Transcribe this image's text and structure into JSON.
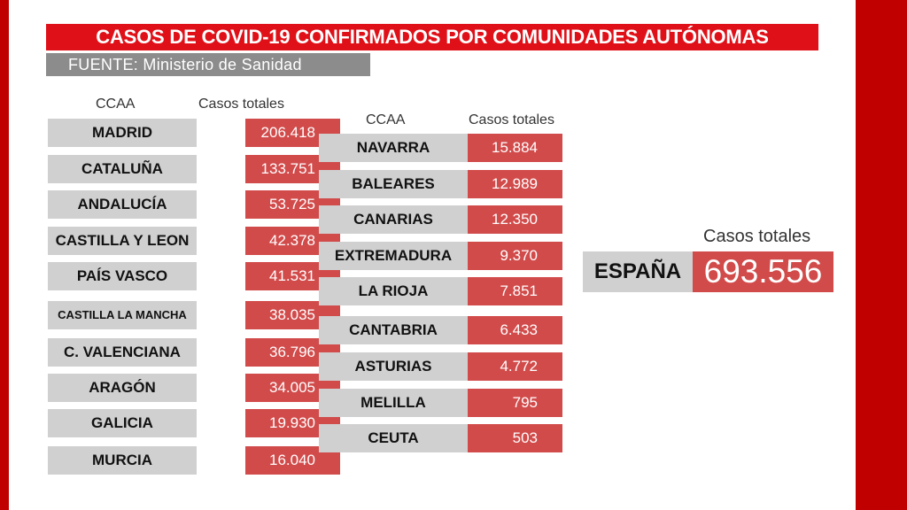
{
  "title": "CASOS DE COVID-19 CONFIRMADOS POR COMUNIDADES AUTÓNOMAS",
  "source": "FUENTE: Ministerio de Sanidad",
  "colors": {
    "accent_red": "#e01018",
    "value_red": "#d24b4b",
    "name_gray": "#d0d0d0",
    "source_gray": "#8c8c8c"
  },
  "left_table": {
    "header_name": "CCAA",
    "header_value": "Casos totales",
    "rows": [
      {
        "name": "MADRID",
        "value": "206.418"
      },
      {
        "name": "CATALUÑA",
        "value": "133.751"
      },
      {
        "name": "ANDALUCÍA",
        "value": "53.725"
      },
      {
        "name": "CASTILLA Y LEON",
        "value": "42.378"
      },
      {
        "name": "PAÍS VASCO",
        "value": "41.531"
      },
      {
        "name": "CASTILLA LA MANCHA",
        "value": "38.035"
      },
      {
        "name": "C. VALENCIANA",
        "value": "36.796"
      },
      {
        "name": "ARAGÓN",
        "value": "34.005"
      },
      {
        "name": "GALICIA",
        "value": "19.930"
      },
      {
        "name": "MURCIA",
        "value": "16.040"
      }
    ]
  },
  "right_table": {
    "header_name": "CCAA",
    "header_value": "Casos totales",
    "rows": [
      {
        "name": "NAVARRA",
        "value": "15.884"
      },
      {
        "name": "BALEARES",
        "value": "12.989"
      },
      {
        "name": "CANARIAS",
        "value": "12.350"
      },
      {
        "name": "EXTREMADURA",
        "value": "9.370"
      },
      {
        "name": "LA RIOJA",
        "value": "7.851"
      },
      {
        "name": "CANTABRIA",
        "value": "6.433"
      },
      {
        "name": "ASTURIAS",
        "value": "4.772"
      },
      {
        "name": "MELILLA",
        "value": "795"
      },
      {
        "name": "CEUTA",
        "value": "503"
      }
    ]
  },
  "total": {
    "header": "Casos totales",
    "name": "ESPAÑA",
    "value": "693.556"
  }
}
